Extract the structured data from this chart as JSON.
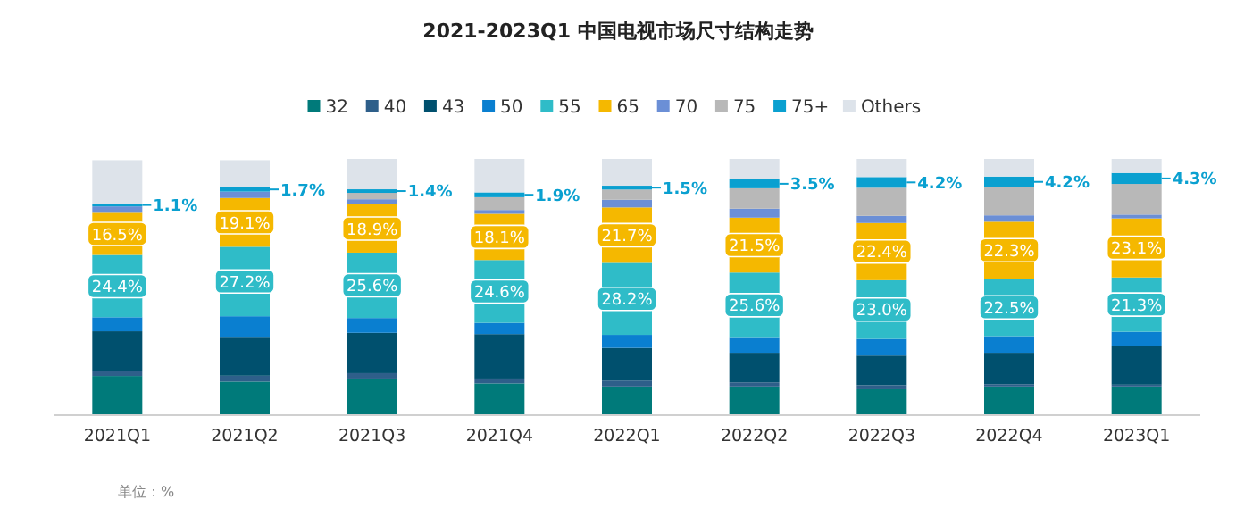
{
  "chart_data": {
    "type": "bar",
    "title": "2021-2023Q1 中国电视市场尺寸结构走势",
    "stacked": true,
    "legend": "top",
    "categories": [
      "2021Q1",
      "2021Q2",
      "2021Q3",
      "2021Q4",
      "2022Q1",
      "2022Q2",
      "2022Q3",
      "2022Q4",
      "2023Q1"
    ],
    "series": [
      {
        "name": "32",
        "color": "#007a7a",
        "values": [
          15,
          12.8,
          14,
          12.1,
          10.9,
          10.9,
          9.8,
          10.9,
          10.9
        ]
      },
      {
        "name": "40",
        "color": "#2e5f8a",
        "values": [
          2,
          2.3,
          2.1,
          1.9,
          2.3,
          1.6,
          1.6,
          0.9,
          0.7
        ]
      },
      {
        "name": "43",
        "color": "#00506e",
        "values": [
          15.5,
          14.9,
          15.8,
          17.4,
          12.8,
          11.6,
          11.6,
          12.3,
          15.1
        ]
      },
      {
        "name": "50",
        "color": "#0a7fd0",
        "values": [
          5.5,
          8.4,
          5.8,
          4.4,
          5.1,
          5.8,
          6.5,
          6.5,
          5.6
        ]
      },
      {
        "name": "55",
        "color": "#2fbcc8",
        "values": [
          24.4,
          27.2,
          25.6,
          24.6,
          28.2,
          25.6,
          23.0,
          22.5,
          21.3
        ],
        "value_labels": [
          "24.4%",
          "27.2%",
          "25.6%",
          "24.6%",
          "28.2%",
          "25.6%",
          "23.0%",
          "22.5%",
          "21.3%"
        ]
      },
      {
        "name": "65",
        "color": "#f5b800",
        "values": [
          16.5,
          19.1,
          18.9,
          18.1,
          21.7,
          21.5,
          22.4,
          22.3,
          23.1
        ],
        "value_labels": [
          "16.5%",
          "19.1%",
          "18.9%",
          "18.1%",
          "21.7%",
          "21.5%",
          "22.4%",
          "22.3%",
          "23.1%"
        ]
      },
      {
        "name": "70",
        "color": "#6b8fd6",
        "values": [
          2.5,
          2.5,
          2,
          1.5,
          3,
          3.5,
          2.8,
          2.5,
          1.5
        ]
      },
      {
        "name": "75",
        "color": "#b8b8b8",
        "values": [
          null,
          null,
          2.5,
          5,
          4,
          8,
          11,
          11,
          12
        ]
      },
      {
        "name": "75+",
        "color": "#0aa0d0",
        "values": [
          1.1,
          1.7,
          1.4,
          1.9,
          1.5,
          3.5,
          4.2,
          4.2,
          4.3
        ],
        "value_labels": [
          "1.1%",
          "1.7%",
          "1.4%",
          "1.9%",
          "1.5%",
          "3.5%",
          "4.2%",
          "4.2%",
          "4.3%"
        ]
      },
      {
        "name": "Others",
        "color": "#dde3ea",
        "values": [
          17,
          10.6,
          11.9,
          13.1,
          10.5,
          8,
          7.1,
          6.9,
          5.5
        ]
      }
    ],
    "annotations": [
      "单位：%"
    ]
  }
}
